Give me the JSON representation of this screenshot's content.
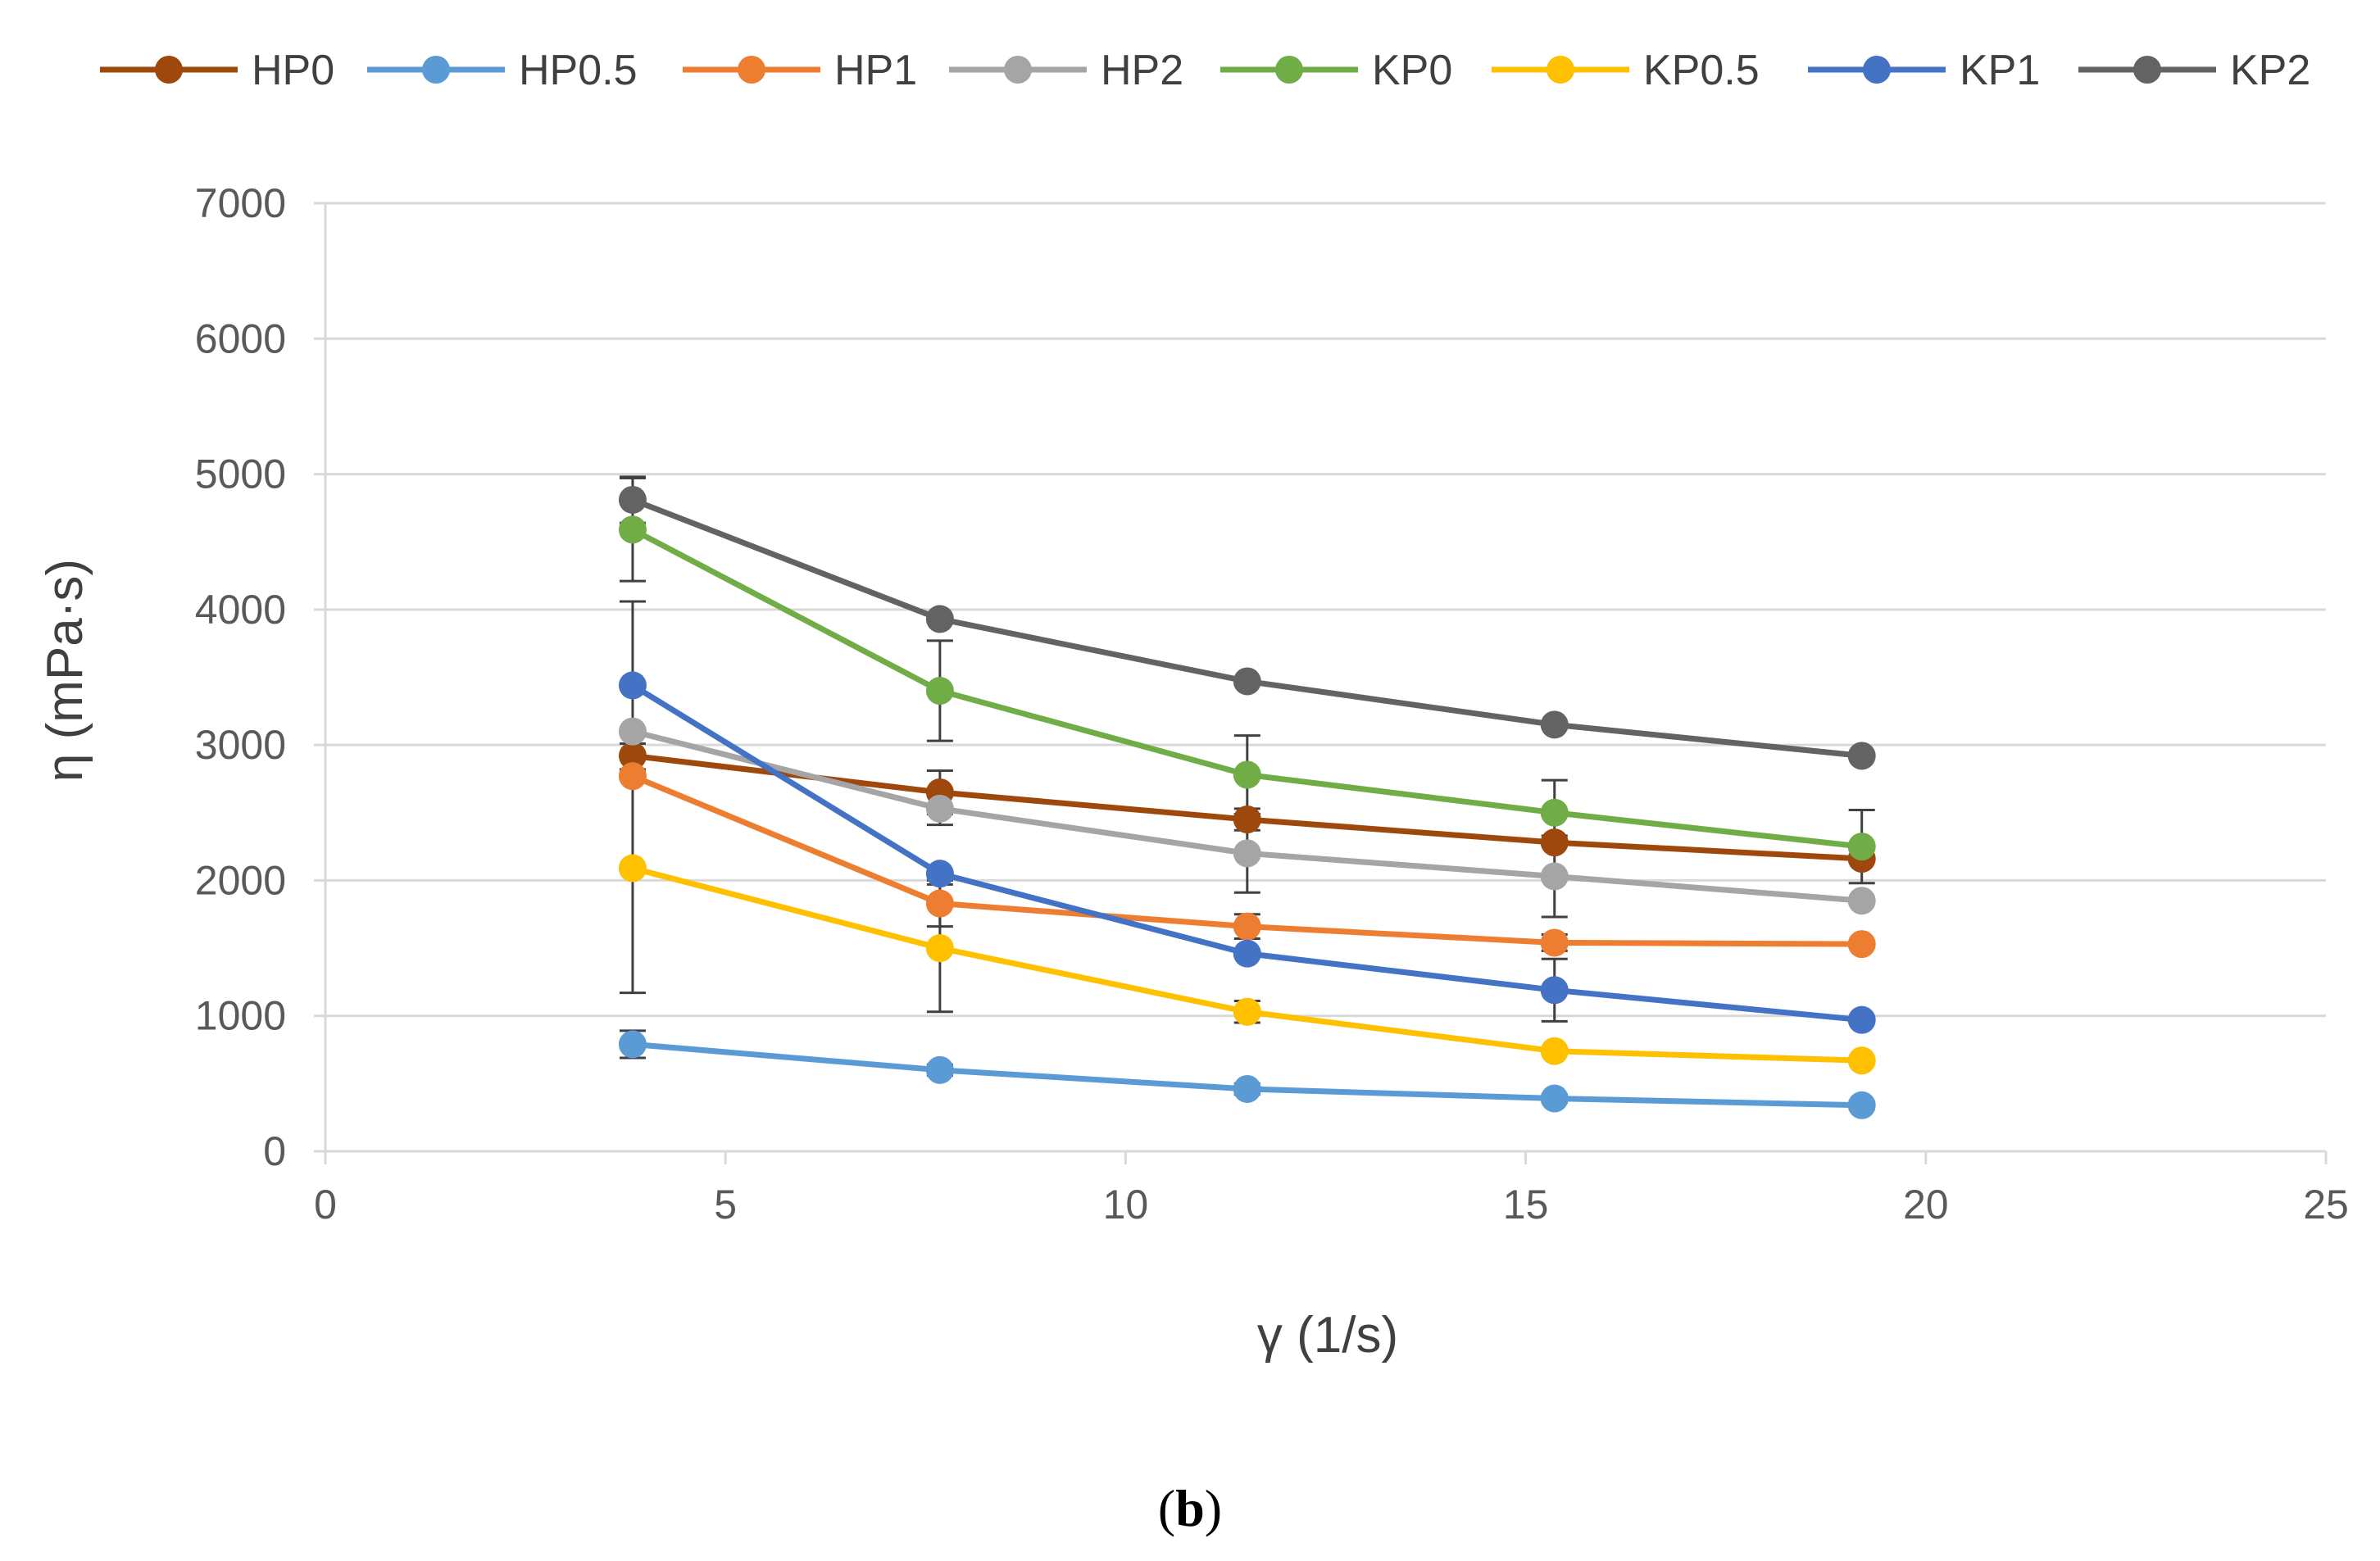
{
  "chart_data": {
    "type": "line",
    "title": "",
    "xlabel": "γ (1/s)",
    "ylabel": "η (mPa·s)",
    "xlim": [
      0,
      25
    ],
    "ylim": [
      0,
      7000
    ],
    "x_ticks": [
      0,
      5,
      10,
      15,
      20,
      25
    ],
    "y_ticks": [
      0,
      1000,
      2000,
      3000,
      4000,
      5000,
      6000,
      7000
    ],
    "grid": true,
    "legend_position": "top",
    "x": [
      3.84,
      7.68,
      11.52,
      15.36,
      19.2
    ],
    "series": [
      {
        "name": "HP0",
        "color": "#9e480e",
        "values": [
          2920,
          2650,
          2450,
          2280,
          2160
        ],
        "errors": [
          0,
          160,
          80,
          0,
          0
        ]
      },
      {
        "name": "HP0.5",
        "color": "#5b9bd5",
        "values": [
          790,
          600,
          460,
          390,
          340
        ],
        "errors": [
          100,
          40,
          40,
          30,
          30
        ]
      },
      {
        "name": "HP1",
        "color": "#ed7d31",
        "values": [
          2770,
          1830,
          1660,
          1540,
          1530
        ],
        "errors": [
          0,
          170,
          90,
          60,
          0
        ]
      },
      {
        "name": "HP2",
        "color": "#a5a5a5",
        "values": [
          3100,
          2530,
          2200,
          2030,
          1850
        ],
        "errors": [
          0,
          120,
          290,
          300,
          0
        ]
      },
      {
        "name": "KP0",
        "color": "#70ad47",
        "values": [
          4590,
          3400,
          2780,
          2500,
          2250
        ],
        "errors": [
          380,
          370,
          290,
          240,
          270
        ]
      },
      {
        "name": "KP0.5",
        "color": "#ffc000",
        "values": [
          2090,
          1500,
          1030,
          740,
          670
        ],
        "errors": [
          920,
          470,
          80,
          0,
          0
        ]
      },
      {
        "name": "KP1",
        "color": "#4472c4",
        "values": [
          3440,
          2050,
          1460,
          1190,
          970
        ],
        "errors": [
          620,
          0,
          0,
          230,
          0
        ]
      },
      {
        "name": "KP2",
        "color": "#636363",
        "values": [
          4810,
          3930,
          3470,
          3150,
          2920
        ],
        "errors": [
          170,
          0,
          0,
          0,
          0
        ]
      }
    ]
  },
  "caption": {
    "open": "(",
    "label": "b",
    "close": ")"
  }
}
